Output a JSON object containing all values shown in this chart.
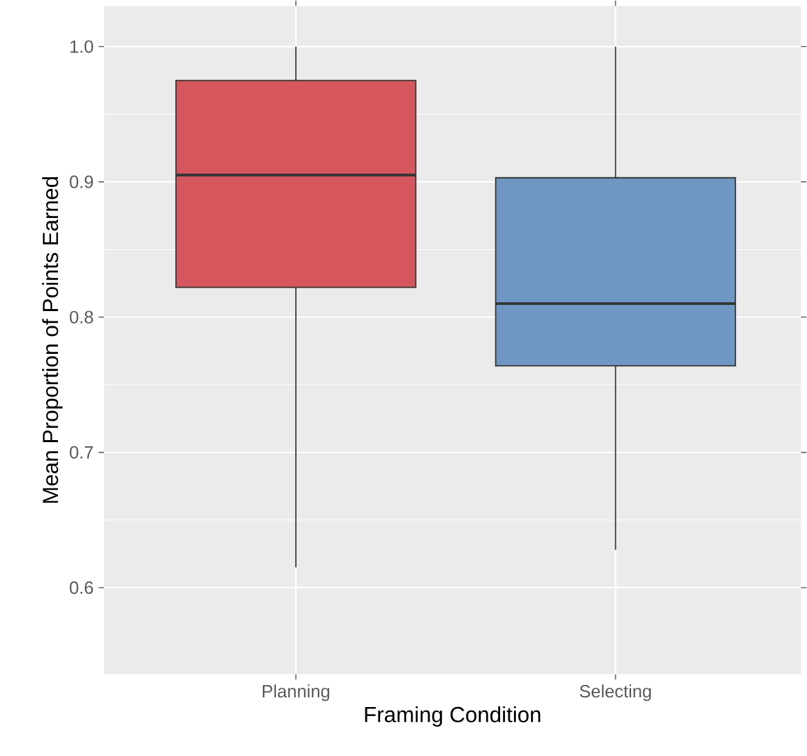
{
  "chart_data": {
    "type": "box",
    "xlabel": "Framing Condition",
    "ylabel": "Mean Proportion of Points Earned",
    "categories": [
      "Planning",
      "Selecting"
    ],
    "colors": [
      "#d5575d",
      "#7097c3"
    ],
    "boxes": [
      {
        "low": 0.615,
        "q1": 0.822,
        "median": 0.905,
        "q3": 0.975,
        "high": 1.0
      },
      {
        "low": 0.628,
        "q1": 0.764,
        "median": 0.81,
        "q3": 0.903,
        "high": 1.0
      }
    ],
    "ylim": [
      0.536,
      1.03
    ],
    "yticks": [
      0.6,
      0.7,
      0.8,
      0.9,
      {
        "value": 1.0,
        "label": "1.0"
      }
    ],
    "grid": true
  }
}
